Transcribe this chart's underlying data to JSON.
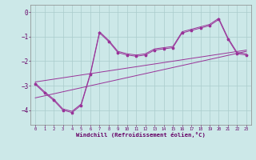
{
  "xlabel": "Windchill (Refroidissement éolien,°C)",
  "background_color": "#cce8e8",
  "grid_color": "#aacccc",
  "line_color": "#993399",
  "xlim": [
    -0.5,
    23.5
  ],
  "ylim": [
    -4.6,
    0.3
  ],
  "xticks": [
    0,
    1,
    2,
    3,
    4,
    5,
    6,
    7,
    8,
    9,
    10,
    11,
    12,
    13,
    14,
    15,
    16,
    17,
    18,
    19,
    20,
    21,
    22,
    23
  ],
  "yticks": [
    0,
    -1,
    -2,
    -3,
    -4
  ],
  "line1_x": [
    0,
    1,
    2,
    3,
    4,
    5,
    6,
    7,
    8,
    9,
    10,
    11,
    12,
    13,
    14,
    15,
    16,
    17,
    18,
    19,
    20,
    21,
    22,
    23
  ],
  "line1_y": [
    -2.95,
    -3.3,
    -3.6,
    -4.0,
    -4.1,
    -3.8,
    -2.55,
    -0.85,
    -1.2,
    -1.65,
    -1.75,
    -1.8,
    -1.75,
    -1.55,
    -1.5,
    -1.45,
    -0.85,
    -0.75,
    -0.65,
    -0.55,
    -0.3,
    -1.1,
    -1.7,
    -1.75
  ],
  "line2_x": [
    0,
    1,
    2,
    3,
    4,
    5,
    6,
    7,
    8,
    9,
    10,
    11,
    12,
    13,
    14,
    15,
    16,
    17,
    18,
    19,
    20,
    21,
    22,
    23
  ],
  "line2_y": [
    -2.9,
    -3.25,
    -3.55,
    -3.95,
    -4.05,
    -3.75,
    -2.5,
    -0.8,
    -1.15,
    -1.6,
    -1.7,
    -1.75,
    -1.7,
    -1.5,
    -1.45,
    -1.4,
    -0.8,
    -0.7,
    -0.6,
    -0.5,
    -0.25,
    -1.05,
    -1.65,
    -1.7
  ],
  "line3_x": [
    0,
    23
  ],
  "line3_y": [
    -3.5,
    -1.6
  ],
  "line4_x": [
    0,
    23
  ],
  "line4_y": [
    -2.85,
    -1.55
  ],
  "marker_x": [
    0,
    1,
    2,
    3,
    4,
    5,
    6,
    7,
    8,
    9,
    10,
    11,
    12,
    13,
    14,
    15,
    16,
    17,
    18,
    19,
    20,
    21,
    22,
    23
  ],
  "marker_y": [
    -2.95,
    -3.3,
    -3.6,
    -4.0,
    -4.1,
    -3.8,
    -2.55,
    -0.85,
    -1.2,
    -1.65,
    -1.75,
    -1.8,
    -1.75,
    -1.55,
    -1.5,
    -1.45,
    -0.85,
    -0.75,
    -0.65,
    -0.55,
    -0.3,
    -1.1,
    -1.7,
    -1.75
  ]
}
